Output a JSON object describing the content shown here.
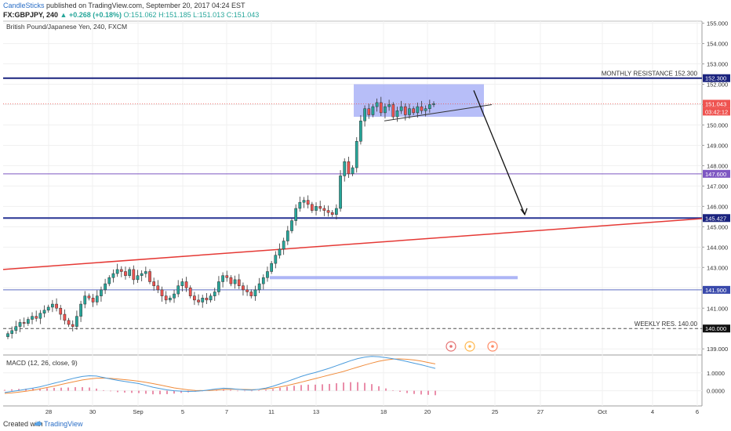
{
  "header": {
    "author": "CandleSticks",
    "published": "published on TradingView.com, September 20, 2017 04:24 EST",
    "symbol": "FX:GBPJPY, 240",
    "change": "▲ +0.268 (+0.18%)",
    "open": "O:151.062",
    "high": "H:151.185",
    "low": "L:151.013",
    "close": "C:151.043"
  },
  "footer": {
    "created": "Created with",
    "brand": "TradingView"
  },
  "chart_data": {
    "type": "candlestick",
    "title": "British Pound/Japanese Yen, 240, FXCM",
    "ylim": [
      138.7,
      155.1
    ],
    "y_ticks": [
      "139.000",
      "140.000",
      "141.000",
      "142.000",
      "143.000",
      "144.000",
      "145.000",
      "146.000",
      "147.000",
      "148.000",
      "149.000",
      "150.000",
      "151.000",
      "152.000",
      "153.000",
      "154.000",
      "155.000"
    ],
    "x_ticks": [
      "28",
      "30",
      "Sep",
      "5",
      "7",
      "11",
      "13",
      "18",
      "20",
      "25",
      "27",
      "Oct",
      "4",
      "6"
    ],
    "colors": {
      "up": "#26a69a",
      "down": "#ef5350",
      "level": "#1a237e",
      "trend": "#e53935",
      "box": "#9fa8f5"
    },
    "closes": [
      139.75,
      139.9,
      140.1,
      140.3,
      140.25,
      140.45,
      140.6,
      140.5,
      140.75,
      140.9,
      141.05,
      141.2,
      141.0,
      140.7,
      140.4,
      140.2,
      140.1,
      140.6,
      141.2,
      141.6,
      141.5,
      141.3,
      141.6,
      141.9,
      142.2,
      142.5,
      142.7,
      142.9,
      142.8,
      142.6,
      142.9,
      142.4,
      142.6,
      142.7,
      142.8,
      142.3,
      142.1,
      141.9,
      141.6,
      141.4,
      141.5,
      141.7,
      142.1,
      142.3,
      142.0,
      141.6,
      141.4,
      141.3,
      141.5,
      141.4,
      141.6,
      141.8,
      142.3,
      142.6,
      142.5,
      142.2,
      142.4,
      142.1,
      141.9,
      141.8,
      141.6,
      141.9,
      142.2,
      142.5,
      142.8,
      143.2,
      143.6,
      143.9,
      144.3,
      144.8,
      145.3,
      145.9,
      146.2,
      146.3,
      146.1,
      145.8,
      146.0,
      145.9,
      145.8,
      145.7,
      145.6,
      145.9,
      147.5,
      148.2,
      147.6,
      147.9,
      149.2,
      150.2,
      150.8,
      150.5,
      150.9,
      151.1,
      150.6,
      150.9,
      151.0,
      150.4,
      150.7,
      150.9,
      150.5,
      150.8,
      150.6,
      150.9,
      150.7,
      150.8,
      151.0,
      151.043
    ],
    "levels": [
      {
        "value": "152.300",
        "label": "MONTHLY RESISTANCE 152.300"
      },
      {
        "value": "147.600",
        "label": ""
      },
      {
        "value": "145.427",
        "label": ""
      },
      {
        "value": "141.900",
        "label": ""
      },
      {
        "value": "140.000",
        "label": "WEEKLY RES. 140.00"
      }
    ],
    "current_price": "151.043",
    "countdown": "03:42:12",
    "macd": {
      "title": "MACD (12, 26, close, 9)",
      "y_ticks": [
        "1.0000",
        "0.0000"
      ],
      "ylim": [
        -0.85,
        2.0
      ],
      "macd_line": [
        -0.1,
        -0.04,
        0.02,
        0.08,
        0.15,
        0.22,
        0.32,
        0.42,
        0.52,
        0.62,
        0.72,
        0.8,
        0.84,
        0.82,
        0.74,
        0.66,
        0.58,
        0.52,
        0.46,
        0.4,
        0.3,
        0.2,
        0.12,
        0.05,
        0.0,
        -0.02,
        -0.04,
        -0.03,
        0.0,
        0.05,
        0.1,
        0.14,
        0.12,
        0.08,
        0.05,
        0.04,
        0.08,
        0.15,
        0.25,
        0.38,
        0.52,
        0.66,
        0.8,
        0.92,
        1.02,
        1.14,
        1.26,
        1.4,
        1.54,
        1.68,
        1.8,
        1.88,
        1.92,
        1.9,
        1.85,
        1.79,
        1.72,
        1.63,
        1.54,
        1.45,
        1.35,
        1.25
      ],
      "signal_line": [
        -0.15,
        -0.12,
        -0.08,
        -0.03,
        0.03,
        0.1,
        0.18,
        0.26,
        0.35,
        0.44,
        0.52,
        0.6,
        0.66,
        0.7,
        0.71,
        0.69,
        0.66,
        0.62,
        0.58,
        0.53,
        0.47,
        0.4,
        0.32,
        0.24,
        0.16,
        0.1,
        0.05,
        0.02,
        0.01,
        0.02,
        0.04,
        0.07,
        0.08,
        0.08,
        0.07,
        0.06,
        0.07,
        0.1,
        0.15,
        0.21,
        0.29,
        0.38,
        0.48,
        0.58,
        0.68,
        0.78,
        0.88,
        0.98,
        1.08,
        1.2,
        1.32,
        1.44,
        1.55,
        1.65,
        1.72,
        1.77,
        1.78,
        1.76,
        1.72,
        1.66,
        1.58,
        1.5
      ],
      "histogram": [
        0.05,
        0.08,
        0.1,
        0.11,
        0.12,
        0.12,
        0.14,
        0.16,
        0.17,
        0.18,
        0.2,
        0.2,
        0.18,
        0.12,
        0.03,
        -0.03,
        -0.08,
        -0.1,
        -0.12,
        -0.13,
        -0.17,
        -0.2,
        -0.2,
        -0.19,
        -0.16,
        -0.12,
        -0.09,
        -0.05,
        -0.01,
        0.03,
        0.06,
        0.07,
        0.04,
        0.0,
        -0.02,
        -0.02,
        0.01,
        0.05,
        0.1,
        0.17,
        0.23,
        0.28,
        0.32,
        0.34,
        0.34,
        0.36,
        0.38,
        0.42,
        0.46,
        0.48,
        0.48,
        0.44,
        0.37,
        0.25,
        0.13,
        0.02,
        -0.06,
        -0.13,
        -0.18,
        -0.21,
        -0.23,
        -0.25
      ]
    }
  }
}
